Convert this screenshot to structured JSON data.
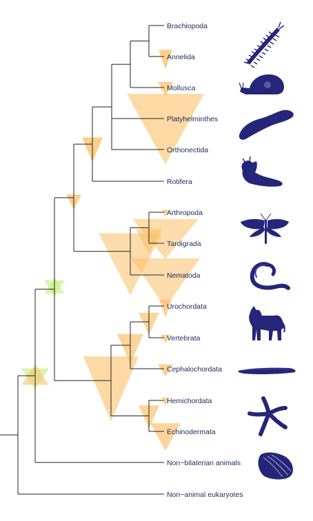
{
  "colors": {
    "branch": "#222222",
    "label": "#1a2a5a",
    "node_marker_orange": "#fbbf66",
    "node_marker_green": "#c8f08a",
    "silhouette": "#25257a"
  },
  "taxa": [
    {
      "key": "brachiopoda",
      "label": "Brachiopoda"
    },
    {
      "key": "annelida",
      "label": "Annelida"
    },
    {
      "key": "mollusca",
      "label": "Mollusca"
    },
    {
      "key": "platyhelminthes",
      "label": "Platyhelminthes"
    },
    {
      "key": "orthonectida",
      "label": "Orthonectida"
    },
    {
      "key": "rotifera",
      "label": "Rotifera"
    },
    {
      "key": "arthropoda",
      "label": "Arthropoda"
    },
    {
      "key": "tardigrada",
      "label": "Tardigrada"
    },
    {
      "key": "nematoda",
      "label": "Nematoda"
    },
    {
      "key": "urochordata",
      "label": "Urochordata"
    },
    {
      "key": "vertebrata",
      "label": "Vertebrata"
    },
    {
      "key": "cephalochordata",
      "label": "Cephalochordata"
    },
    {
      "key": "hemichordata",
      "label": "Hemichordata"
    },
    {
      "key": "echinodermata",
      "label": "Echinodermata"
    },
    {
      "key": "non-bilaterian",
      "label": "Non−bilaterian animals"
    },
    {
      "key": "non-animal",
      "label": "Non−animal eukaryotes"
    }
  ],
  "silhouettes": [
    {
      "name": "centipede-silhouette"
    },
    {
      "name": "snail-silhouette"
    },
    {
      "name": "flatworm-silhouette"
    },
    {
      "name": "slug-silhouette"
    },
    {
      "name": "moth-silhouette"
    },
    {
      "name": "worm-silhouette"
    },
    {
      "name": "dog-silhouette"
    },
    {
      "name": "lancelet-silhouette"
    },
    {
      "name": "starfish-silhouette"
    },
    {
      "name": "sponge-silhouette"
    }
  ]
}
